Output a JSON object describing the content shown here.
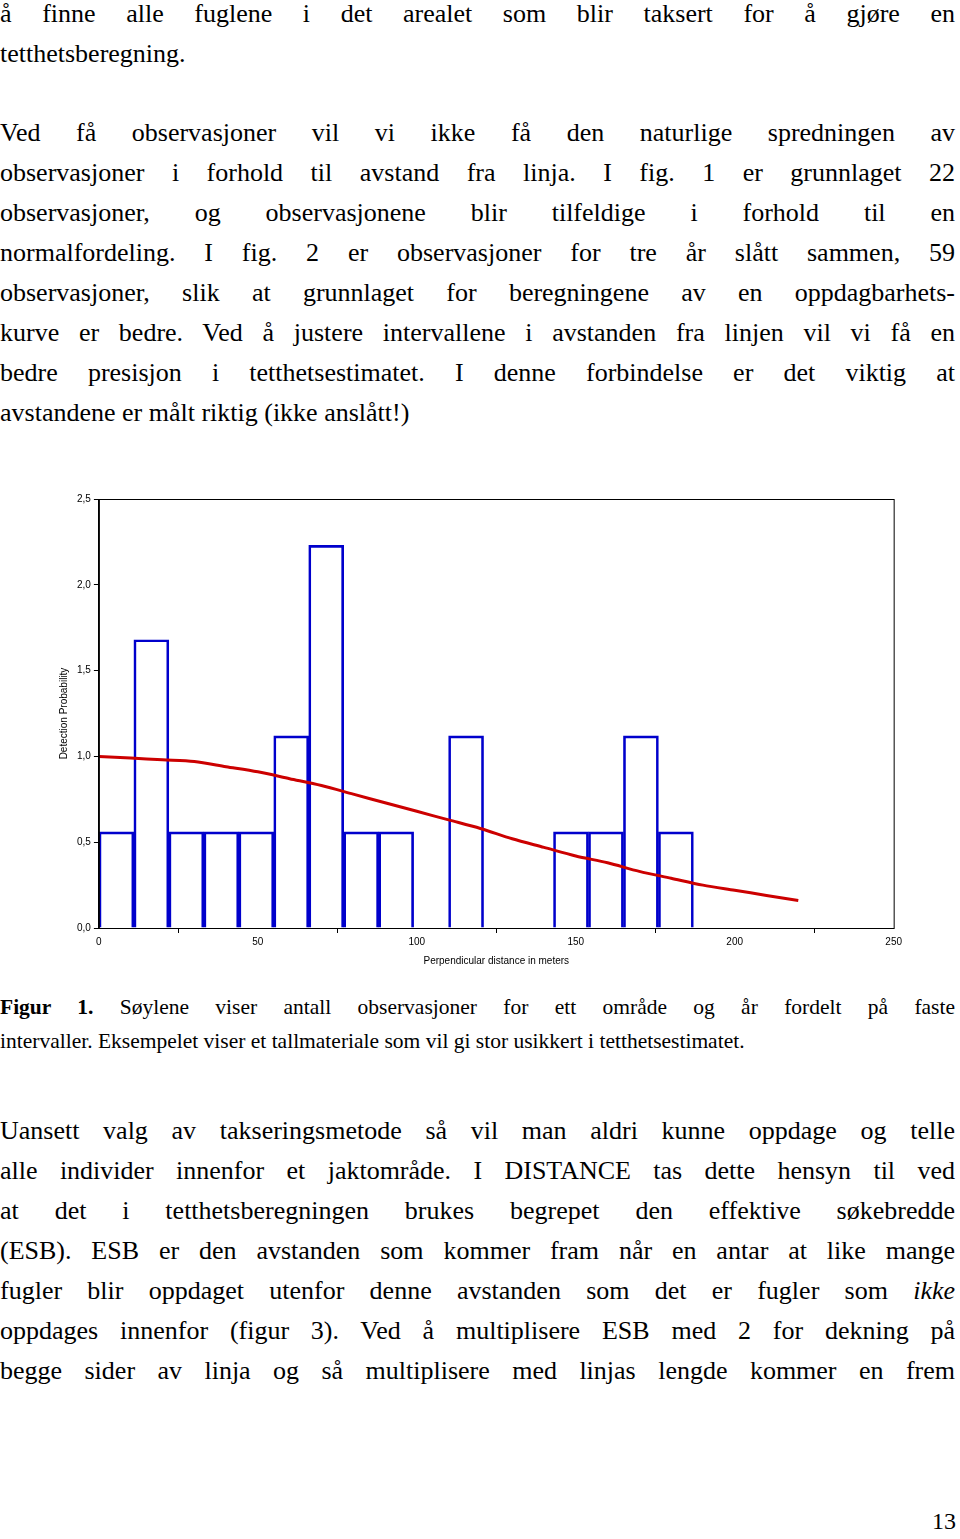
{
  "document": {
    "paragraph_1": {
      "lines": [
        "å finne alle fuglene i det arealet som blir taksert for å gjøre en",
        "tetthetsberegning."
      ],
      "justify_last": false
    },
    "paragraph_2": {
      "lines": [
        "Ved få observasjoner vil vi ikke få den naturlige spredningen av",
        "observasjoner i forhold til avstand fra linja. I fig. 1 er grunnlaget 22",
        "observasjoner, og observasjonene blir tilfeldige i forhold til en",
        "normalfordeling. I fig. 2 er observasjoner for tre år slått sammen, 59",
        "observasjoner, slik at grunnlaget for beregningene av en oppdagbarhets-",
        "kurve er bedre. Ved å justere intervallene i avstanden fra linjen vil vi få en",
        "bedre presisjon i tetthetsestimatet. I denne forbindelse er det viktig at",
        "avstandene er målt riktig (ikke anslått!)"
      ],
      "justify_last": false
    },
    "caption": {
      "label": "Figur 1.",
      "lines": [
        " Søylene viser antall observasjoner for ett område og år fordelt på faste",
        "intervaller. Eksempelet viser et tallmateriale som vil gi stor usikkert i tetthetsestimatet."
      ]
    },
    "paragraph_3": {
      "lines": [
        "Uansett valg av takseringsmetode så vil man aldri kunne oppdage og telle",
        "alle individer innenfor et jaktområde. I DISTANCE tas dette hensyn til ved",
        "at det i tetthetsberegningen brukes begrepet den effektive søkebredde",
        "(ESB). ESB er den avstanden som kommer fram når en antar at like mange",
        [
          {
            "text": "fugler blir oppdaget utenfor denne avstanden som det er fugler som "
          },
          {
            "text": "ikke",
            "em": true
          }
        ],
        "oppdages innenfor (figur 3). Ved å multiplisere ESB med 2 for dekning på",
        "begge sider av linja og så multiplisere med linjas lengde kommer en frem"
      ],
      "justify_last": true
    },
    "page_number": "13"
  },
  "chart_data": {
    "type": "histogram",
    "x_label": "Perpendicular distance in meters",
    "y_label": "Detection Probability",
    "bins": [
      0,
      11,
      22,
      33,
      44,
      55,
      66,
      77,
      88,
      99,
      110,
      121,
      132,
      143,
      154,
      165,
      176,
      187,
      198,
      209,
      220
    ],
    "values": [
      0.56,
      1.68,
      0.56,
      0.56,
      0.56,
      1.12,
      2.23,
      0.56,
      0.56,
      0,
      1.12,
      0,
      0,
      0.56,
      0.56,
      1.12,
      0.56,
      0,
      0,
      0
    ],
    "color": "#0000cc",
    "curve": {
      "type": "line",
      "color": "#cc0000",
      "x": [
        0,
        10,
        20,
        30,
        40,
        50,
        60,
        70,
        80,
        90,
        100,
        110,
        120,
        130,
        140,
        150,
        160,
        170,
        180,
        190,
        200,
        210,
        220
      ],
      "values": [
        1.0,
        0.99,
        0.98,
        0.97,
        0.94,
        0.91,
        0.87,
        0.83,
        0.78,
        0.73,
        0.68,
        0.63,
        0.58,
        0.52,
        0.47,
        0.42,
        0.38,
        0.33,
        0.29,
        0.25,
        0.22,
        0.19,
        0.16
      ]
    },
    "xlim": [
      0,
      250
    ],
    "xticks": [
      0,
      50,
      100,
      150,
      200,
      250
    ],
    "ylim": [
      0,
      2.5
    ],
    "yticks": [
      {
        "value": 0,
        "label": "0,0"
      },
      {
        "value": 0.5,
        "label": "0,5"
      },
      {
        "value": 1,
        "label": "1,0"
      },
      {
        "value": 1.5,
        "label": "1,5"
      },
      {
        "value": 2,
        "label": "2,0"
      },
      {
        "value": 2.5,
        "label": "2,5"
      }
    ],
    "grid": false
  }
}
